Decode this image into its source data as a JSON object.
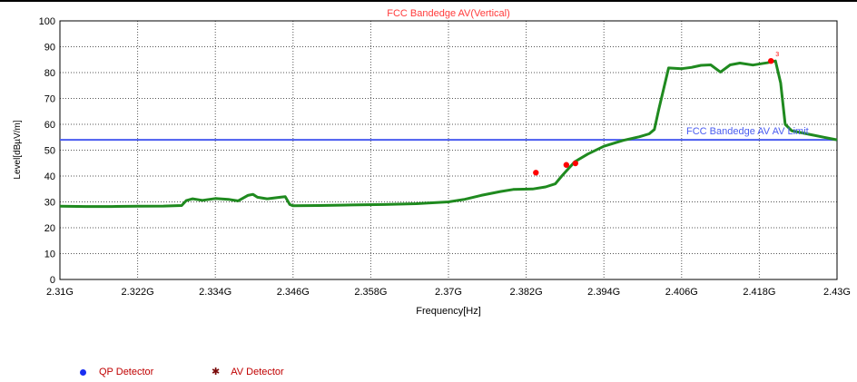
{
  "chart_data": {
    "type": "line",
    "title": "FCC Bandedge AV(Vertical)",
    "xlabel": "Frequency[Hz]",
    "ylabel": "Level[dBµV/m]",
    "xlim": [
      2.31,
      2.43
    ],
    "ylim": [
      0,
      100
    ],
    "x_ticks": [
      2.31,
      2.322,
      2.334,
      2.346,
      2.358,
      2.37,
      2.382,
      2.394,
      2.406,
      2.418,
      2.43
    ],
    "x_tick_labels": [
      "2.31G",
      "2.322G",
      "2.334G",
      "2.346G",
      "2.358G",
      "2.37G",
      "2.382G",
      "2.394G",
      "2.406G",
      "2.418G",
      "2.43G"
    ],
    "y_ticks": [
      0,
      10,
      20,
      30,
      40,
      50,
      60,
      70,
      80,
      90,
      100
    ],
    "y_tick_labels": [
      "0",
      "10",
      "20",
      "30",
      "40",
      "50",
      "60",
      "70",
      "80",
      "90",
      "100"
    ],
    "grid": true,
    "series": [
      {
        "color": "#1f8a1f",
        "x": [
          2.31,
          2.314,
          2.318,
          2.322,
          2.326,
          2.3288,
          2.3295,
          2.3305,
          2.332,
          2.334,
          2.336,
          2.3375,
          2.339,
          2.3398,
          2.3405,
          2.342,
          2.344,
          2.3448,
          2.3455,
          2.346,
          2.35,
          2.355,
          2.36,
          2.365,
          2.37,
          2.3725,
          2.375,
          2.378,
          2.38,
          2.383,
          2.385,
          2.3865,
          2.3875,
          2.3885,
          2.3895,
          2.3915,
          2.394,
          2.397,
          2.3995,
          2.401,
          2.4018,
          2.4025,
          2.404,
          2.406,
          2.4075,
          2.409,
          2.4105,
          2.412,
          2.4135,
          2.415,
          2.417,
          2.4192,
          2.4205,
          2.4213,
          2.422,
          2.423,
          2.425,
          2.428,
          2.43
        ],
        "y": [
          28.3,
          28.2,
          28.2,
          28.3,
          28.4,
          28.6,
          30.5,
          31.2,
          30.6,
          31.3,
          31.0,
          30.4,
          32.5,
          32.9,
          31.8,
          31.2,
          31.8,
          32.0,
          29.0,
          28.5,
          28.6,
          28.8,
          29.0,
          29.3,
          30.0,
          31.0,
          32.5,
          34.0,
          34.8,
          35.0,
          35.8,
          37.0,
          40.0,
          42.8,
          45.5,
          48.5,
          51.5,
          53.8,
          55.2,
          56.3,
          58.0,
          66.0,
          81.8,
          81.5,
          82.0,
          82.8,
          83.0,
          80.2,
          83.0,
          83.7,
          82.9,
          83.8,
          84.5,
          76.0,
          60.0,
          57.5,
          56.5,
          55.0,
          54.0
        ]
      },
      {
        "name": "FCC Bandedge AV AV Limit",
        "color": "#4a5cf0",
        "x": [
          2.31,
          2.43
        ],
        "y": [
          54,
          54
        ]
      }
    ],
    "markers": {
      "color": "#ff0000",
      "x": [
        2.3835,
        2.3882,
        2.3896,
        2.4198
      ],
      "y": [
        41.3,
        44.3,
        44.9,
        84.5
      ]
    },
    "marker_annotation": "3",
    "legend": [
      "QP Detector",
      "AV Detector"
    ]
  }
}
